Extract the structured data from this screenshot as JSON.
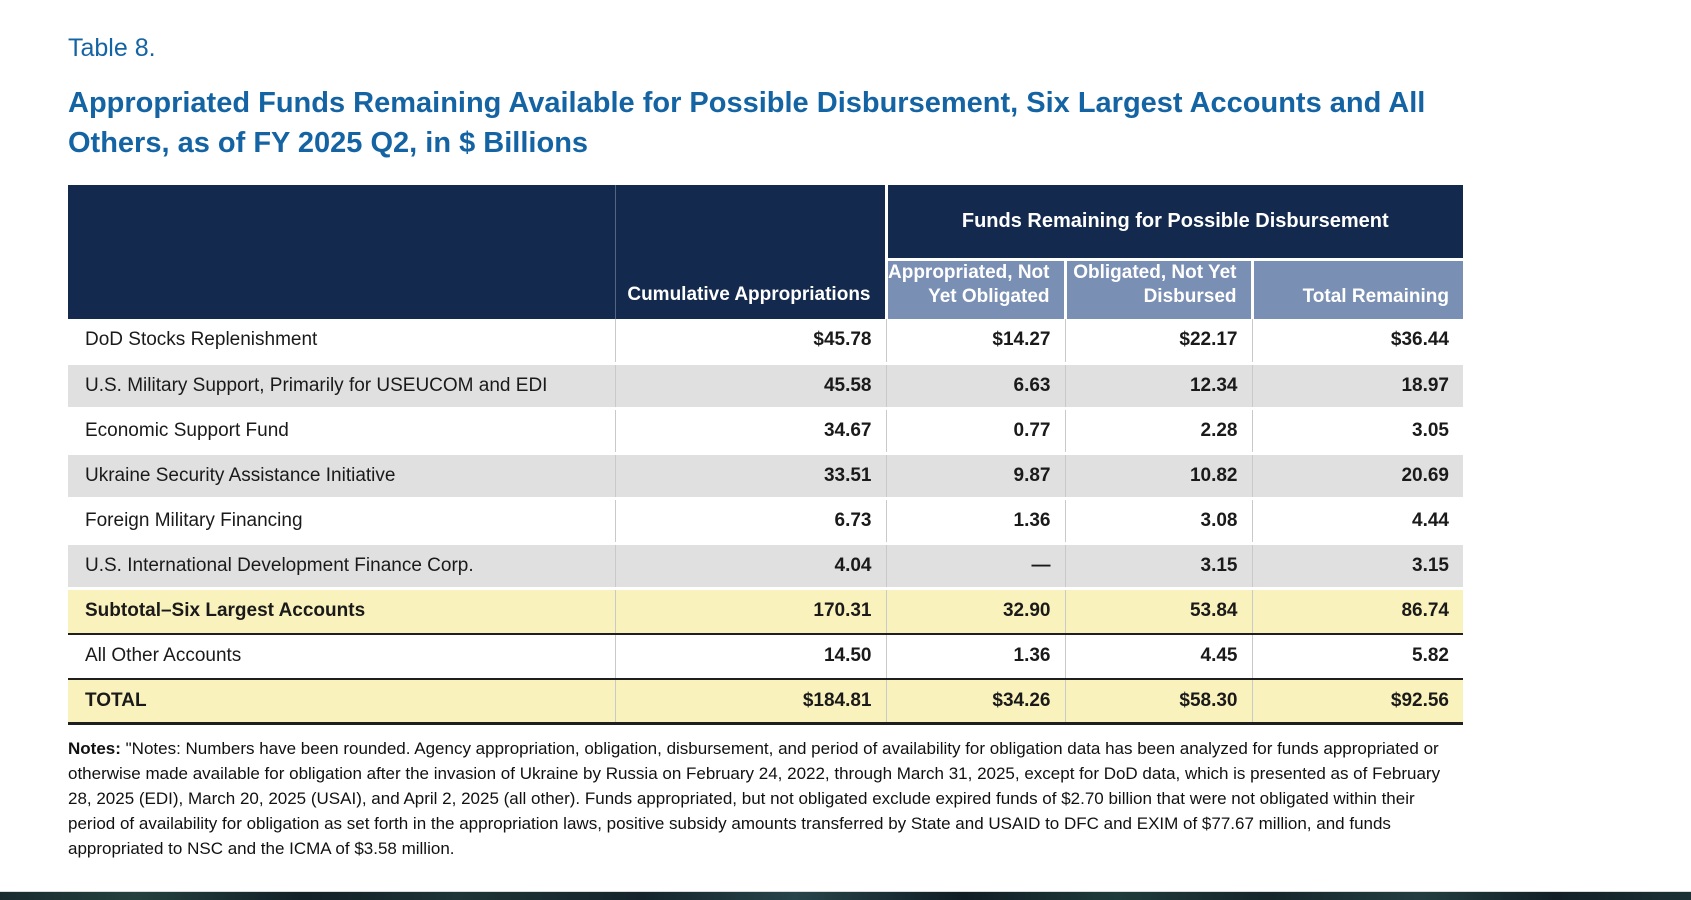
{
  "page": {
    "table_label": "Table 8.",
    "title": "Appropriated Funds Remaining Available for Possible Disbursement, Six Largest Accounts and All Others, as of FY 2025 Q2, in $ Billions"
  },
  "colors": {
    "title_blue": "#1464A4",
    "header_navy": "#14294E",
    "subheader_blue": "#7A8FB4",
    "stripe_gray": "#E0E0E0",
    "highlight_yellow": "#FAF2BC"
  },
  "table": {
    "group_header": "Funds Remaining for Possible Disbursement",
    "columns": {
      "cumulative": "Cumulative Appropriations",
      "appropriated": "Appropriated, Not Yet Obligated",
      "obligated": "Obligated, Not Yet Disbursed",
      "total": "Total Remaining"
    },
    "rows": [
      {
        "label": "DoD Stocks Replenishment",
        "values": [
          "$45.78",
          "$14.27",
          "$22.17",
          "$36.44"
        ],
        "style": "plain"
      },
      {
        "label": "U.S. Military Support, Primarily for USEUCOM and EDI",
        "values": [
          "45.58",
          "6.63",
          "12.34",
          "18.97"
        ],
        "style": "striped"
      },
      {
        "label": "Economic Support Fund",
        "values": [
          "34.67",
          "0.77",
          "2.28",
          "3.05"
        ],
        "style": "plain"
      },
      {
        "label": "Ukraine Security Assistance Initiative",
        "values": [
          "33.51",
          "9.87",
          "10.82",
          "20.69"
        ],
        "style": "striped"
      },
      {
        "label": "Foreign Military Financing",
        "values": [
          "6.73",
          "1.36",
          "3.08",
          "4.44"
        ],
        "style": "plain"
      },
      {
        "label": "U.S. International Development Finance Corp.",
        "values": [
          "4.04",
          "—",
          "3.15",
          "3.15"
        ],
        "style": "striped"
      },
      {
        "label": "Subtotal–Six Largest Accounts",
        "values": [
          "170.31",
          "32.90",
          "53.84",
          "86.74"
        ],
        "style": "subtotal"
      },
      {
        "label": "All Other Accounts",
        "values": [
          "14.50",
          "1.36",
          "4.45",
          "5.82"
        ],
        "style": "plain"
      },
      {
        "label": "TOTAL",
        "values": [
          "$184.81",
          "$34.26",
          "$58.30",
          "$92.56"
        ],
        "style": "total"
      }
    ]
  },
  "notes": {
    "label": "Notes:",
    "body": "\"Notes: Numbers have been rounded. Agency  appropriation, obligation, disbursement, and period of availability for obligation  data has been analyzed for funds appropriated or otherwise made available for obligation after the invasion of Ukraine by Russia on February 24, 2022, through March 31, 2025, except for DoD data, which is presented as of February 28, 2025 (EDI), March 20, 2025 (USAI), and April 2, 2025 (all other). Funds appropriated, but not obligated exclude expired funds of $2.70 billion that were not obligated within their period of availability for obligation as set forth in the appropriation laws, positive subsidy amounts transferred by State and USAID to DFC and EXIM of $77.67 million, and funds appropriated to NSC and the ICMA of $3.58 million."
  }
}
